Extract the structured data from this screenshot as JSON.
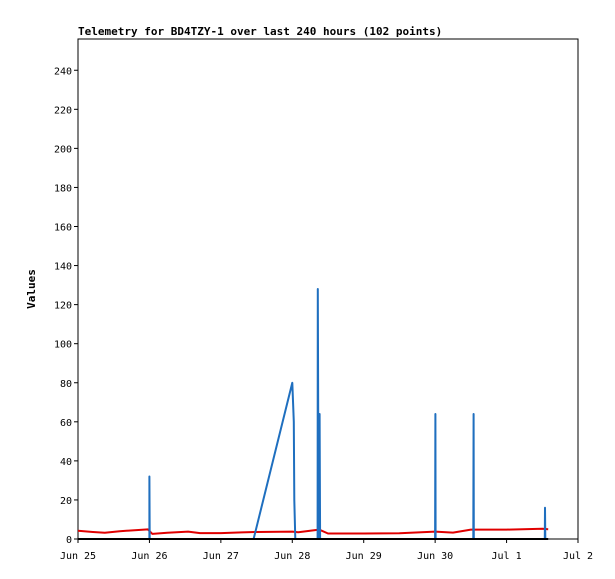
{
  "chart_data": {
    "type": "line",
    "title": "Telemetry for BD4TZY-1 over last 240 hours (102 points)",
    "xlabel": "",
    "ylabel": "Values",
    "x_ticks": [
      "Jun 25",
      "Jun 26",
      "Jun 27",
      "Jun 28",
      "Jun 29",
      "Jun 30",
      "Jul 1",
      "Jul 2"
    ],
    "y_ticks": [
      0,
      20,
      40,
      60,
      80,
      100,
      120,
      140,
      160,
      180,
      200,
      220,
      240
    ],
    "xlim": [
      "2024-06-25T00:00",
      "2024-07-02T00:00"
    ],
    "ylim": [
      0,
      256
    ],
    "grid": false,
    "legend": "none",
    "series": [
      {
        "color": "#e00000",
        "points": [
          [
            "2024-06-25T00:00",
            4.2
          ],
          [
            "2024-06-25T05:00",
            3.6
          ],
          [
            "2024-06-25T09:00",
            3.2
          ],
          [
            "2024-06-25T14:00",
            4.0
          ],
          [
            "2024-06-25T23:30",
            4.9
          ],
          [
            "2024-06-26T01:00",
            2.6
          ],
          [
            "2024-06-26T06:00",
            3.2
          ],
          [
            "2024-06-26T13:00",
            3.8
          ],
          [
            "2024-06-26T17:00",
            3.0
          ],
          [
            "2024-06-27T00:00",
            3.0
          ],
          [
            "2024-06-27T07:00",
            3.4
          ],
          [
            "2024-06-27T12:00",
            3.6
          ],
          [
            "2024-06-28T00:00",
            3.8
          ],
          [
            "2024-06-28T02:00",
            3.5
          ],
          [
            "2024-06-28T09:00",
            4.8
          ],
          [
            "2024-06-28T12:00",
            2.8
          ],
          [
            "2024-06-29T00:00",
            2.8
          ],
          [
            "2024-06-29T12:00",
            2.9
          ],
          [
            "2024-06-30T00:00",
            3.8
          ],
          [
            "2024-06-30T06:00",
            3.3
          ],
          [
            "2024-06-30T12:00",
            4.8
          ],
          [
            "2024-07-01T00:00",
            4.8
          ],
          [
            "2024-07-01T12:00",
            5.2
          ],
          [
            "2024-07-01T14:00",
            5.0
          ]
        ]
      },
      {
        "color": "#1f6fbf",
        "points": [
          [
            "2024-06-26T00:00",
            0
          ],
          [
            "2024-06-26T00:00",
            32
          ],
          [
            "2024-06-26T00:05",
            0
          ],
          [
            "2024-06-27T11:00",
            0
          ],
          [
            "2024-06-28T00:00",
            80
          ],
          [
            "2024-06-28T00:30",
            60
          ],
          [
            "2024-06-28T00:40",
            20
          ],
          [
            "2024-06-28T01:00",
            0
          ],
          [
            "2024-06-28T08:30",
            0
          ],
          [
            "2024-06-28T08:35",
            128
          ],
          [
            "2024-06-28T08:50",
            0
          ],
          [
            "2024-06-28T09:05",
            0
          ],
          [
            "2024-06-28T09:10",
            64
          ],
          [
            "2024-06-28T09:20",
            0
          ],
          [
            "2024-06-30T00:00",
            0
          ],
          [
            "2024-06-30T00:05",
            64
          ],
          [
            "2024-06-30T00:10",
            0
          ],
          [
            "2024-06-30T12:50",
            0
          ],
          [
            "2024-06-30T12:55",
            64
          ],
          [
            "2024-06-30T13:00",
            0
          ],
          [
            "2024-07-01T12:50",
            0
          ],
          [
            "2024-07-01T12:55",
            16
          ],
          [
            "2024-07-01T13:00",
            0
          ]
        ]
      },
      {
        "color": "#000000",
        "points": [
          [
            "2024-06-25T00:00",
            0
          ],
          [
            "2024-07-01T14:00",
            0
          ]
        ]
      }
    ]
  }
}
